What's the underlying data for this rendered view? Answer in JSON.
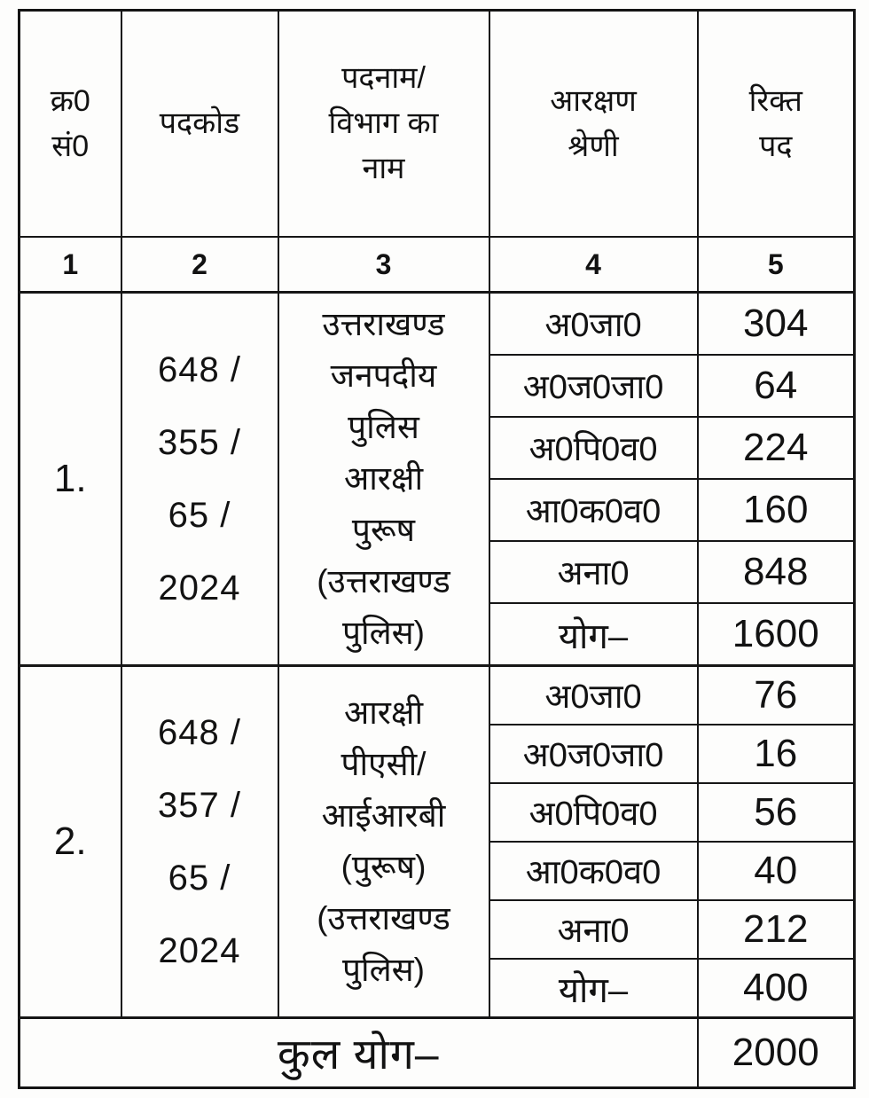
{
  "table": {
    "headers": [
      "क्र0\nसं0",
      "पदकोड",
      "पदनाम/\nविभाग का\nनाम",
      "आरक्षण\nश्रेणी",
      "रिक्त\nपद"
    ],
    "column_numbers": [
      "1",
      "2",
      "3",
      "4",
      "5"
    ],
    "rows": [
      {
        "sn": "1.",
        "code": "648 /\n355 /\n65 /\n2024",
        "name": "उत्तराखण्ड\nजनपदीय\nपुलिस\nआरक्षी\nपुरूष\n(उत्तराखण्ड\nपुलिस)",
        "breakup": [
          {
            "category": "अ0जा0",
            "vacancies": "304"
          },
          {
            "category": "अ0ज0जा0",
            "vacancies": "64"
          },
          {
            "category": "अ0पि0व0",
            "vacancies": "224"
          },
          {
            "category": "आ0क0व0",
            "vacancies": "160"
          },
          {
            "category": "अना0",
            "vacancies": "848"
          },
          {
            "category": "योग–",
            "vacancies": "1600"
          }
        ]
      },
      {
        "sn": "2.",
        "code": "648 /\n357 /\n65 /\n2024",
        "name": "आरक्षी\nपीएसी/\nआईआरबी\n(पुरूष)\n(उत्तराखण्ड\nपुलिस)",
        "breakup": [
          {
            "category": "अ0जा0",
            "vacancies": "76"
          },
          {
            "category": "अ0ज0जा0",
            "vacancies": "16"
          },
          {
            "category": "अ0पि0व0",
            "vacancies": "56"
          },
          {
            "category": "आ0क0व0",
            "vacancies": "40"
          },
          {
            "category": "अना0",
            "vacancies": "212"
          },
          {
            "category": "योग–",
            "vacancies": "400"
          }
        ]
      }
    ],
    "footer": {
      "label": "कुल योग–",
      "total": "2000"
    }
  }
}
